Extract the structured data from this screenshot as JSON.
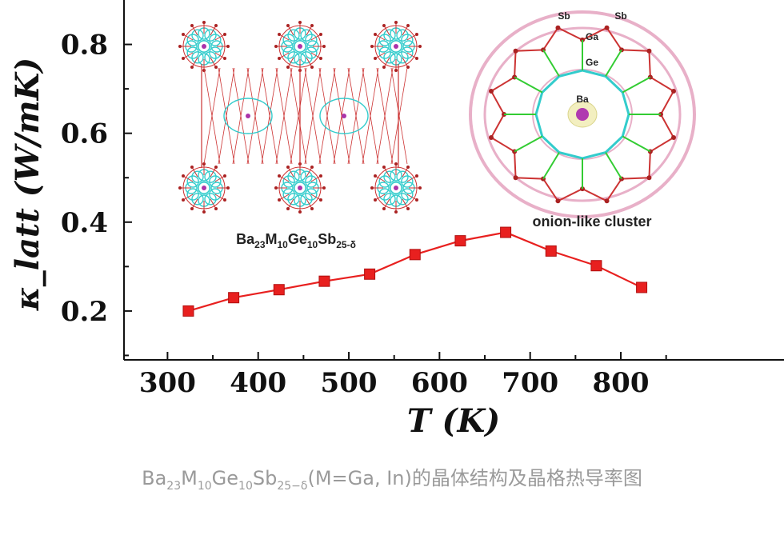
{
  "chart_data": {
    "type": "line",
    "x": [
      323,
      373,
      423,
      473,
      523,
      573,
      623,
      673,
      723,
      773,
      823
    ],
    "series": [
      {
        "values": [
          0.2,
          0.23,
          0.248,
          0.267,
          0.283,
          0.327,
          0.358,
          0.377,
          0.335,
          0.302,
          0.253
        ]
      }
    ],
    "xlabel": "T (K)",
    "ylabel": "κ_latt (W/mK)",
    "xlim": [
      252,
      980
    ],
    "ylim": [
      0.09,
      0.9
    ],
    "xticks": [
      "300",
      "400",
      "500",
      "600",
      "700",
      "800"
    ],
    "yticks": [
      "0.2",
      "0.4",
      "0.6",
      "0.8"
    ],
    "marker": "square",
    "color": "#e8201f",
    "grid": false,
    "legend": "none",
    "insets": {
      "structure_label": "Ba23M10Ge10Sb25-δ",
      "cluster_label": "onion-like cluster",
      "atom_labels": [
        "Sb",
        "Sb",
        "Ga",
        "Ge",
        "Ba"
      ]
    }
  },
  "caption": {
    "parts": [
      "Ba",
      "23",
      "M",
      "10",
      "Ge",
      "10",
      "Sb",
      "25−δ",
      "(M=Ga, In)的晶体结构及晶格热导率图"
    ]
  }
}
